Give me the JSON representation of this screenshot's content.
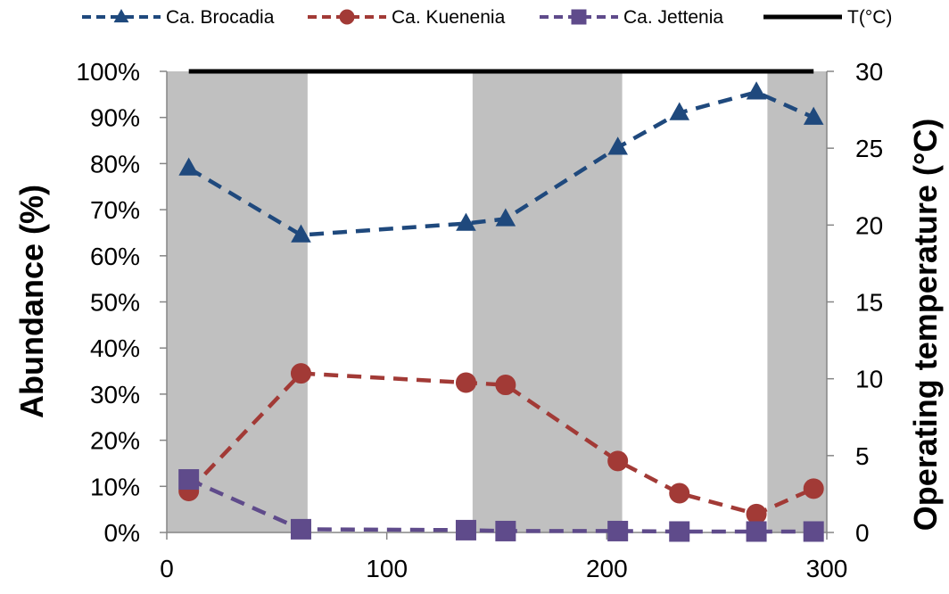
{
  "chart_data": {
    "type": "line",
    "title": "",
    "xlabel": "",
    "ylabel": "Abundance (%)",
    "y2label": "Operating temperature (°C)",
    "xlim": [
      0,
      300
    ],
    "ylim": [
      0,
      100
    ],
    "y2lim": [
      0,
      30
    ],
    "x_ticks": [
      "0",
      "100",
      "200",
      "300"
    ],
    "x_tick_values": [
      0,
      100,
      200,
      300
    ],
    "y_ticks": [
      "0%",
      "10%",
      "20%",
      "30%",
      "40%",
      "50%",
      "60%",
      "70%",
      "80%",
      "90%",
      "100%"
    ],
    "y_tick_values": [
      0,
      10,
      20,
      30,
      40,
      50,
      60,
      70,
      80,
      90,
      100
    ],
    "y2_ticks": [
      "0",
      "5",
      "10",
      "15",
      "20",
      "25",
      "30"
    ],
    "y2_tick_values": [
      0,
      5,
      10,
      15,
      20,
      25,
      30
    ],
    "shaded_ranges": [
      [
        0,
        64
      ],
      [
        139,
        207
      ],
      [
        273,
        300
      ]
    ],
    "shade_color": "#c0c0c0",
    "legend_placement": "top",
    "series": [
      {
        "name": "Ca. Brocadia",
        "style": "dashed",
        "marker": "triangle",
        "color": "#1f497d",
        "axis": "left",
        "x": [
          10,
          61,
          136,
          154,
          205,
          233,
          268,
          294
        ],
        "values": [
          79,
          64.5,
          67,
          68,
          83.5,
          91,
          95.5,
          90
        ]
      },
      {
        "name": "Ca. Kuenenia",
        "style": "dashed",
        "marker": "circle",
        "color": "#a23a36",
        "axis": "left",
        "x": [
          10,
          61,
          136,
          154,
          205,
          233,
          268,
          294
        ],
        "values": [
          9,
          34.5,
          32.5,
          32,
          15.5,
          8.5,
          4,
          9.5
        ]
      },
      {
        "name": "Ca. Jettenia",
        "style": "dashed",
        "marker": "square",
        "color": "#5f4b8b",
        "axis": "left",
        "x": [
          10,
          61,
          136,
          154,
          205,
          233,
          268,
          294
        ],
        "values": [
          11.5,
          0.7,
          0.5,
          0.3,
          0.3,
          0.2,
          0.2,
          0.2
        ]
      },
      {
        "name": "T(°C)",
        "style": "solid",
        "marker": "none",
        "color": "#000000",
        "axis": "right",
        "x": [
          10,
          294
        ],
        "values": [
          30,
          30
        ]
      }
    ]
  }
}
